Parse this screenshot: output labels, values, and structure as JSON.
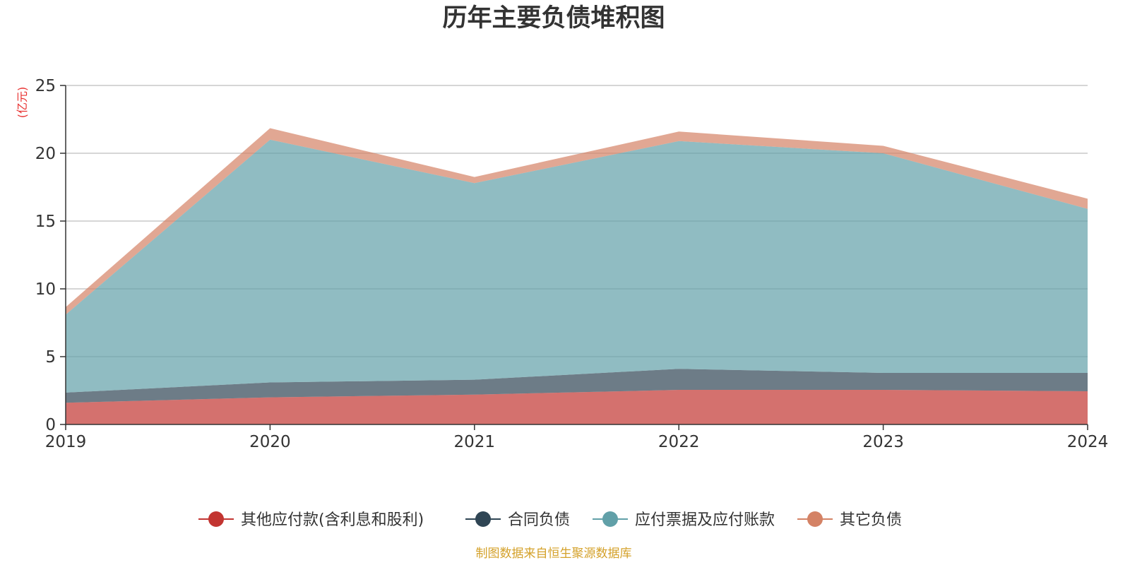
{
  "chart_data": {
    "type": "area",
    "stacked": true,
    "title": "历年主要负债堆积图",
    "ylabel": "(亿元)",
    "xlabel": "",
    "categories": [
      "2019",
      "2020",
      "2021",
      "2022",
      "2023",
      "2024"
    ],
    "ylim": [
      0,
      25
    ],
    "yticks": [
      0,
      5,
      10,
      15,
      20,
      25
    ],
    "grid": true,
    "legend_position": "bottom",
    "series": [
      {
        "name": "其他应付款(含利息和股利)",
        "values": [
          1.6,
          2.0,
          2.2,
          2.55,
          2.55,
          2.45
        ],
        "color": "#c23531"
      },
      {
        "name": "合同负债",
        "values": [
          0.75,
          1.1,
          1.1,
          1.55,
          1.25,
          1.35
        ],
        "color": "#2f4554"
      },
      {
        "name": "应付票据及应付账款",
        "values": [
          5.75,
          17.9,
          14.5,
          16.8,
          16.2,
          12.1
        ],
        "color": "#61a0a8"
      },
      {
        "name": "其它负债",
        "values": [
          0.55,
          0.85,
          0.45,
          0.7,
          0.55,
          0.75
        ],
        "color": "#d48265"
      }
    ]
  },
  "source": "制图数据来自恒生聚源数据库"
}
